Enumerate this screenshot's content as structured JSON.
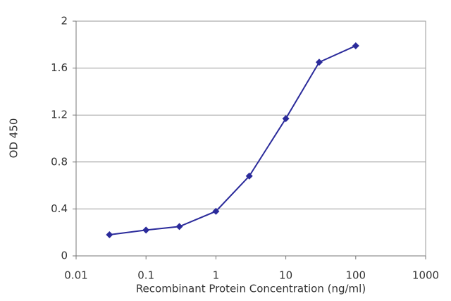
{
  "chart_data": {
    "type": "line",
    "x_label": "Recombinant Protein Concentration (ng/ml)",
    "y_label": "OD 450",
    "x": [
      0.03,
      0.1,
      0.3,
      1,
      3,
      10,
      30,
      100
    ],
    "series": [
      {
        "color": "#2b2b9b",
        "values": [
          0.18,
          0.22,
          0.25,
          0.38,
          0.68,
          1.17,
          1.65,
          1.79
        ]
      }
    ],
    "xscale": "log",
    "xlim": [
      0.01,
      1000
    ],
    "xticks": [
      0.01,
      0.1,
      1,
      10,
      100,
      1000
    ],
    "ylim": [
      0,
      2
    ],
    "yticks": [
      0,
      0.4,
      0.8,
      1.2,
      1.6,
      2
    ],
    "grid": true
  }
}
